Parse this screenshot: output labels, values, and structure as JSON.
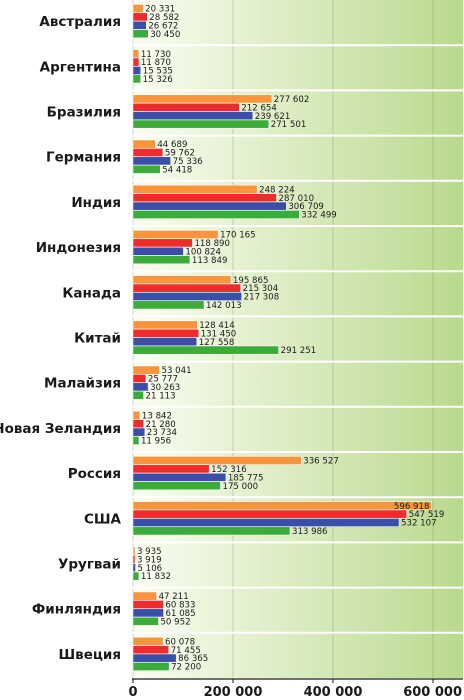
{
  "chart_data": {
    "type": "bar",
    "orientation": "horizontal",
    "title": "",
    "xlabel": "",
    "ylabel": "",
    "xlim": [
      0,
      600000
    ],
    "x_ticks": [
      0,
      200000,
      400000,
      600000
    ],
    "x_tick_labels": [
      "0",
      "200 000",
      "400 000",
      "600 000"
    ],
    "grid": true,
    "legend": "none",
    "colors": {
      "series_1": "#f7943c",
      "series_2": "#ee2c2c",
      "series_3": "#3c4fa8",
      "series_4": "#3bab3a",
      "plot_bg_left": "#fafdf2",
      "plot_bg_right": "#b9d98e",
      "separator": "#ffffff"
    },
    "categories": [
      "Австралия",
      "Аргентина",
      "Бразилия",
      "Германия",
      "Индия",
      "Индонезия",
      "Канада",
      "Китай",
      "Малайзия",
      "Новая Зеландия",
      "Россия",
      "США",
      "Уругвай",
      "Финляндия",
      "Швеция"
    ],
    "series": [
      {
        "values": [
          20331,
          11730,
          277602,
          44689,
          248224,
          170165,
          195865,
          128414,
          53041,
          13842,
          336527,
          596918,
          3935,
          47211,
          60078
        ],
        "labels": [
          "20 331",
          "11 730",
          "277 602",
          "44 689",
          "248 224",
          "170 165",
          "195 865",
          "128 414",
          "53 041",
          "13 842",
          "336 527",
          "596 918",
          "3 935",
          "47 211",
          "60 078"
        ]
      },
      {
        "values": [
          28582,
          11870,
          212654,
          59762,
          287010,
          118890,
          215304,
          131450,
          25777,
          21280,
          152316,
          547519,
          3919,
          60833,
          71455
        ],
        "labels": [
          "28 582",
          "11 870",
          "212 654",
          "59 762",
          "287 010",
          "118 890",
          "215 304",
          "131 450",
          "25 777",
          "21 280",
          "152 316",
          "547 519",
          "3 919",
          "60 833",
          "71 455"
        ]
      },
      {
        "values": [
          26672,
          15535,
          239621,
          75336,
          306709,
          100824,
          217308,
          127558,
          30263,
          23734,
          185775,
          532107,
          5106,
          61085,
          86365
        ],
        "labels": [
          "26 672",
          "15 535",
          "239 621",
          "75 336",
          "306 709",
          "100 824",
          "217 308",
          "127 558",
          "30 263",
          "23 734",
          "185 775",
          "532 107",
          "5 106",
          "61 085",
          "86 365"
        ]
      },
      {
        "values": [
          30450,
          15326,
          271501,
          54418,
          332499,
          113849,
          142013,
          291251,
          21113,
          11956,
          175000,
          313986,
          11832,
          50952,
          72200
        ],
        "labels": [
          "30 450",
          "15 326",
          "271 501",
          "54 418",
          "332 499",
          "113 849",
          "142 013",
          "291 251",
          "21 113",
          "11 956",
          "175 000",
          "313 986",
          "11 832",
          "50 952",
          "72 200"
        ]
      }
    ]
  }
}
